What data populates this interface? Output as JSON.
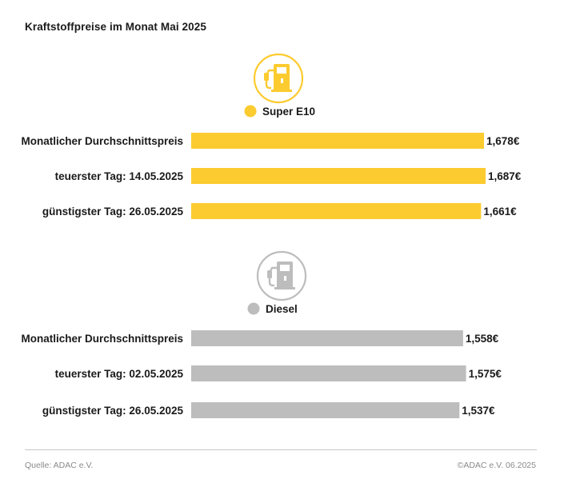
{
  "title": "Kraftstoffpreise im Monat Mai 2025",
  "footer": {
    "source": "Quelle: ADAC e.V.",
    "copyright": "©ADAC e.V. 06.2025"
  },
  "colors": {
    "super": "#fccb2f",
    "diesel": "#bdbdbd",
    "text": "#1a1a1a"
  },
  "icons": [
    "fuel-pump-icon-super",
    "fuel-pump-icon-diesel"
  ],
  "chart_data": [
    {
      "type": "bar",
      "orientation": "horizontal",
      "series": [
        {
          "name": "Super E10",
          "values": [
            1.678,
            1.687,
            1.661
          ]
        }
      ],
      "categories": [
        "Monatlicher Durchschnittspreis",
        "teuerster Tag: 14.05.2025",
        "günstigster Tag: 26.05.2025"
      ],
      "value_labels": [
        "1,678€",
        "1,687€",
        "1,661€"
      ],
      "color": "#fccb2f",
      "icon": "fuel-pump-icon",
      "legend": "Super E10"
    },
    {
      "type": "bar",
      "orientation": "horizontal",
      "series": [
        {
          "name": "Diesel",
          "values": [
            1.558,
            1.575,
            1.537
          ]
        }
      ],
      "categories": [
        "Monatlicher Durchschnittspreis",
        "teuerster Tag: 02.05.2025",
        "günstigster Tag: 26.05.2025"
      ],
      "value_labels": [
        "1,558€",
        "1,575€",
        "1,537€"
      ],
      "color": "#bdbdbd",
      "icon": "fuel-pump-icon",
      "legend": "Diesel"
    }
  ]
}
